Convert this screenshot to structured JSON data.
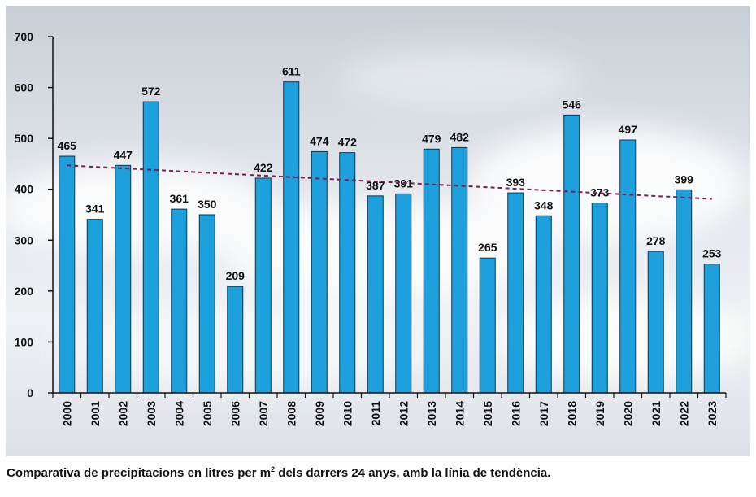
{
  "chart_data": {
    "type": "bar",
    "categories": [
      "2000",
      "2001",
      "2002",
      "2003",
      "2004",
      "2005",
      "2006",
      "2007",
      "2008",
      "2009",
      "2010",
      "2011",
      "2012",
      "2013",
      "2014",
      "2015",
      "2016",
      "2017",
      "2018",
      "2019",
      "2020",
      "2021",
      "2022",
      "2023"
    ],
    "values": [
      465,
      341,
      447,
      572,
      361,
      350,
      209,
      422,
      611,
      474,
      472,
      387,
      391,
      479,
      482,
      265,
      393,
      348,
      546,
      373,
      497,
      278,
      399,
      253
    ],
    "data_labels": [
      "465",
      "341",
      "447",
      "572",
      "361",
      "350",
      "209",
      "422",
      "611",
      "474",
      "472",
      "387",
      "391",
      "479",
      "482",
      "265",
      "393",
      "348",
      "546",
      "373",
      "497",
      "278",
      "399",
      "253"
    ],
    "ylim": [
      0,
      700
    ],
    "yticks": [
      "0",
      "100",
      "200",
      "300",
      "400",
      "500",
      "600",
      "700"
    ],
    "trendline": {
      "start": 447,
      "end": 381,
      "style": "dashed"
    },
    "bar_color": "#1ea0dc",
    "bar_edge_color": "#0b3550",
    "trend_color": "#7a1f4f",
    "grid": false,
    "legend": "none"
  },
  "caption": {
    "text_before": "Comparativa de precipitacions en litres per m",
    "superscript": "2",
    "text_after": " dels darrers 24 anys, amb la línia de tendència."
  }
}
